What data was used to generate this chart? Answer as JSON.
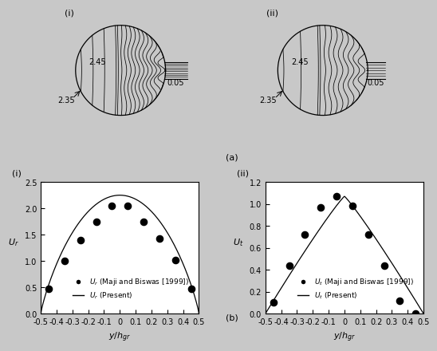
{
  "background_color": "#c8c8c8",
  "label_a": "(a)",
  "label_b": "(b)",
  "panel_i_label": "(i)",
  "panel_ii_label": "(ii)",
  "contour_label_245": "2.45",
  "contour_label_235": "2.35",
  "contour_label_005": "0.05",
  "plot1_xlim": [
    -0.5,
    0.5
  ],
  "plot1_ylim": [
    0,
    2.5
  ],
  "plot2_xlim": [
    -0.5,
    0.5
  ],
  "plot2_ylim": [
    0,
    1.2
  ],
  "plot1_xticks": [
    -0.5,
    -0.4,
    -0.3,
    -0.2,
    -0.1,
    0.0,
    0.1,
    0.2,
    0.3,
    0.4,
    0.5
  ],
  "plot1_yticks": [
    0.0,
    0.5,
    1.0,
    1.5,
    2.0,
    2.5
  ],
  "plot2_xticks": [
    -0.5,
    -0.4,
    -0.3,
    -0.2,
    -0.1,
    0.0,
    0.1,
    0.2,
    0.3,
    0.4,
    0.5
  ],
  "plot2_yticks": [
    0.0,
    0.2,
    0.4,
    0.6,
    0.8,
    1.0,
    1.2
  ],
  "scatter1_x": [
    -0.45,
    -0.35,
    -0.25,
    -0.15,
    -0.05,
    0.05,
    0.15,
    0.25,
    0.35,
    0.45
  ],
  "scatter1_y": [
    0.48,
    1.0,
    1.4,
    1.75,
    2.05,
    2.05,
    1.75,
    1.42,
    1.02,
    0.48
  ],
  "scatter2_x": [
    -0.45,
    -0.35,
    -0.25,
    -0.15,
    -0.05,
    0.05,
    0.15,
    0.25,
    0.35,
    0.45
  ],
  "scatter2_y": [
    0.1,
    0.44,
    0.72,
    0.97,
    1.07,
    0.98,
    0.72,
    0.44,
    0.12,
    0.0
  ],
  "line_color": "#000000",
  "dot_color": "#000000",
  "dot_size": 35,
  "font_size_label": 8,
  "font_size_tick": 7,
  "font_size_legend": 6.5,
  "font_size_panel": 8
}
